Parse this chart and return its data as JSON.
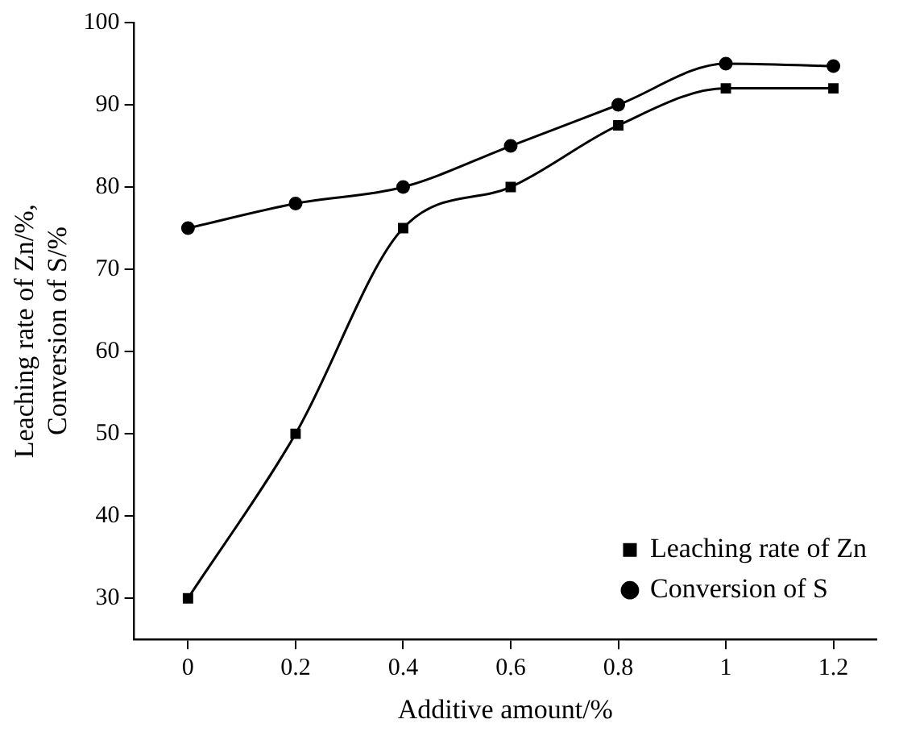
{
  "chart_data": {
    "type": "line",
    "xlabel": "Additive amount/%",
    "ylabel": "Leaching rate of Zn/%, Conversion of S/%",
    "x": [
      0,
      0.2,
      0.4,
      0.6,
      0.8,
      1.0,
      1.2
    ],
    "series": [
      {
        "name": "Leaching rate of Zn",
        "color": "#000000",
        "marker": "square",
        "values": [
          30,
          50,
          75,
          80,
          87.5,
          92,
          92
        ]
      },
      {
        "name": "Conversion of S",
        "color": "#000000",
        "marker": "circle",
        "values": [
          75,
          78,
          80,
          85,
          90,
          95,
          94.7
        ]
      }
    ],
    "xlim": [
      -0.1,
      1.28
    ],
    "xticks": [
      0,
      0.2,
      0.4,
      0.6,
      0.8,
      1.0,
      1.2
    ],
    "ylim": [
      25,
      100
    ],
    "yticks": [
      30,
      40,
      50,
      60,
      70,
      80,
      90,
      100
    ],
    "grid": false,
    "legend": "bottom right",
    "line_style": "solid"
  }
}
